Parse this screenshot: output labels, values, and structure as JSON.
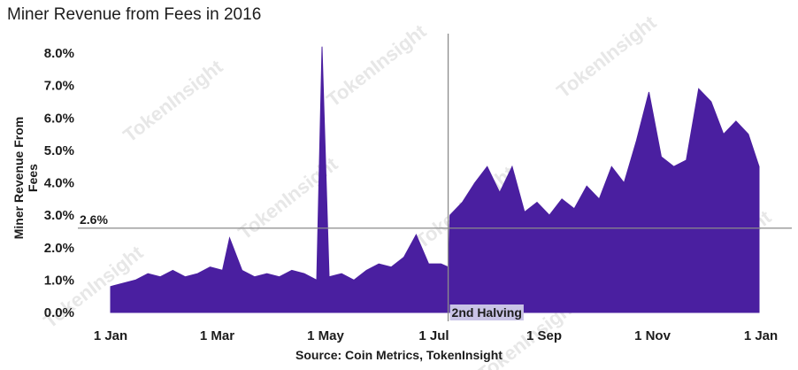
{
  "chart_data": {
    "type": "area",
    "title": "Miner Revenue from Fees in 2016",
    "xlabel": "",
    "ylabel": "Miner Revenue From Fees",
    "source": "Source: Coin Metrics, TokenInsight",
    "watermark": "TokenInsight",
    "color": "#4a1fa0",
    "x_ticks": [
      "1 Jan",
      "1 Mar",
      "1 May",
      "1 Jul",
      "1 Sep",
      "1 Nov",
      "1 Jan"
    ],
    "y_ticks": [
      "0.0%",
      "1.0%",
      "2.0%",
      "3.0%",
      "4.0%",
      "5.0%",
      "6.0%",
      "7.0%",
      "8.0%"
    ],
    "ylim": [
      0,
      8.0
    ],
    "reference_line": {
      "value": 2.6,
      "label": "2.6%"
    },
    "event": {
      "date": "2016-07-09",
      "label": "2nd Halving"
    },
    "series": [
      {
        "values": [
          [
            "2016-01-01",
            0.8
          ],
          [
            "2016-01-08",
            0.9
          ],
          [
            "2016-01-15",
            1.0
          ],
          [
            "2016-01-22",
            1.2
          ],
          [
            "2016-01-29",
            1.1
          ],
          [
            "2016-02-05",
            1.3
          ],
          [
            "2016-02-12",
            1.1
          ],
          [
            "2016-02-19",
            1.2
          ],
          [
            "2016-02-26",
            1.4
          ],
          [
            "2016-03-04",
            1.3
          ],
          [
            "2016-03-08",
            2.3
          ],
          [
            "2016-03-15",
            1.3
          ],
          [
            "2016-03-22",
            1.1
          ],
          [
            "2016-03-29",
            1.2
          ],
          [
            "2016-04-05",
            1.1
          ],
          [
            "2016-04-12",
            1.3
          ],
          [
            "2016-04-19",
            1.2
          ],
          [
            "2016-04-26",
            1.0
          ],
          [
            "2016-04-29",
            8.2
          ],
          [
            "2016-05-03",
            1.1
          ],
          [
            "2016-05-10",
            1.2
          ],
          [
            "2016-05-17",
            1.0
          ],
          [
            "2016-05-24",
            1.3
          ],
          [
            "2016-05-31",
            1.5
          ],
          [
            "2016-06-07",
            1.4
          ],
          [
            "2016-06-14",
            1.7
          ],
          [
            "2016-06-21",
            2.4
          ],
          [
            "2016-06-28",
            1.5
          ],
          [
            "2016-07-05",
            1.5
          ],
          [
            "2016-07-09",
            1.4
          ],
          [
            "2016-07-10",
            3.0
          ],
          [
            "2016-07-17",
            3.4
          ],
          [
            "2016-07-24",
            4.0
          ],
          [
            "2016-07-31",
            4.5
          ],
          [
            "2016-08-07",
            3.7
          ],
          [
            "2016-08-14",
            4.5
          ],
          [
            "2016-08-21",
            3.1
          ],
          [
            "2016-08-28",
            3.4
          ],
          [
            "2016-09-04",
            3.0
          ],
          [
            "2016-09-11",
            3.5
          ],
          [
            "2016-09-18",
            3.2
          ],
          [
            "2016-09-25",
            3.9
          ],
          [
            "2016-10-02",
            3.5
          ],
          [
            "2016-10-09",
            4.5
          ],
          [
            "2016-10-16",
            4.0
          ],
          [
            "2016-10-23",
            5.3
          ],
          [
            "2016-10-30",
            6.8
          ],
          [
            "2016-11-06",
            4.8
          ],
          [
            "2016-11-13",
            4.5
          ],
          [
            "2016-11-20",
            4.7
          ],
          [
            "2016-11-27",
            6.9
          ],
          [
            "2016-12-04",
            6.5
          ],
          [
            "2016-12-11",
            5.5
          ],
          [
            "2016-12-18",
            5.9
          ],
          [
            "2016-12-25",
            5.5
          ],
          [
            "2016-12-31",
            4.5
          ]
        ]
      }
    ]
  }
}
